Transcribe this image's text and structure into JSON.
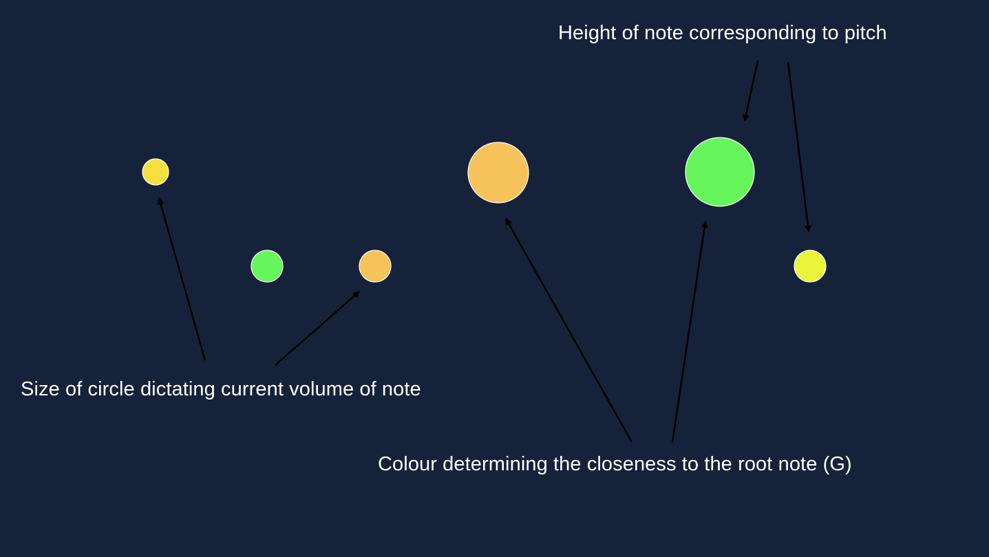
{
  "background_color": "#15223a",
  "text_color": "#ffffff",
  "arrow_color": "#000000",
  "annotations": {
    "volume": "Size of circle dictating current volume of note",
    "colour": "Colour determining the closeness to the root note (G)",
    "pitch": "Height of note corresponding to pitch"
  },
  "notes": [
    {
      "name": "note-1",
      "color": "#f6e040",
      "relative_volume": 0.38,
      "pitch_level": "high"
    },
    {
      "name": "note-2",
      "color": "#66f55a",
      "relative_volume": 0.46,
      "pitch_level": "low"
    },
    {
      "name": "note-3",
      "color": "#f6c35b",
      "relative_volume": 0.46,
      "pitch_level": "low"
    },
    {
      "name": "note-4",
      "color": "#f6c35b",
      "relative_volume": 0.88,
      "pitch_level": "high"
    },
    {
      "name": "note-5",
      "color": "#66f55a",
      "relative_volume": 1.0,
      "pitch_level": "high"
    },
    {
      "name": "note-6",
      "color": "#e9f43a",
      "relative_volume": 0.46,
      "pitch_level": "low"
    }
  ]
}
